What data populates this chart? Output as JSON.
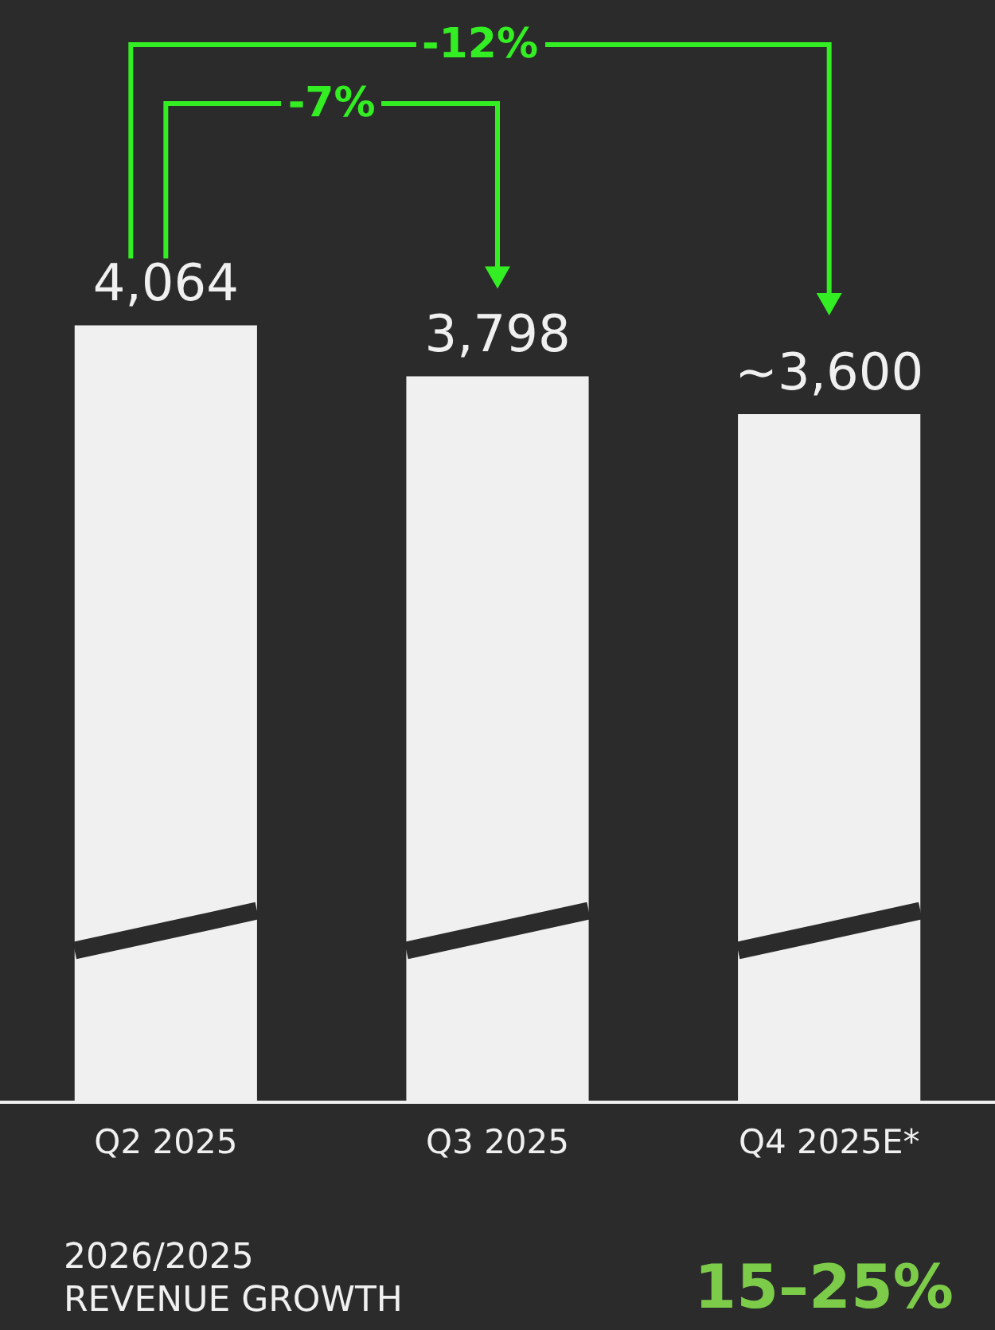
{
  "chart_data": {
    "type": "bar",
    "categories": [
      "Q2 2025",
      "Q3 2025",
      "Q4 2025E*"
    ],
    "values": [
      4064,
      3798,
      3600
    ],
    "value_labels": [
      "4,064",
      "3,798",
      "~3,600"
    ],
    "color": "#f0f0f0",
    "legend": false,
    "tick_labels": "x",
    "annotations": [
      "-12%",
      "-7%",
      "2026/2025 REVENUE GROWTH",
      "15–25%"
    ]
  }
}
